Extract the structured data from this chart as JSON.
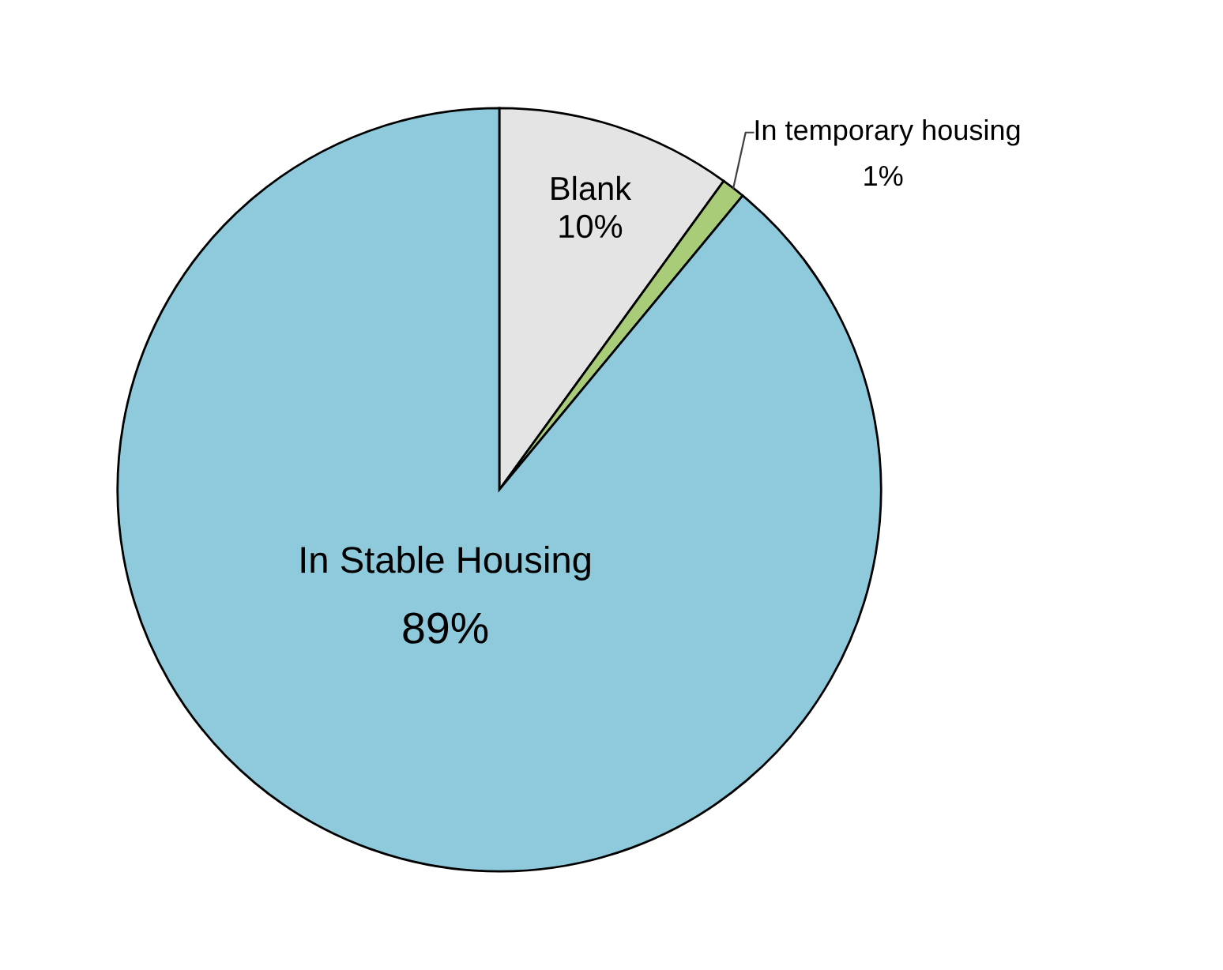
{
  "chart_data": {
    "type": "pie",
    "categories": [
      "Blank",
      "In temporary housing",
      "In Stable Housing"
    ],
    "values": [
      10,
      1,
      89
    ],
    "colors": [
      "#e4e4e4",
      "#a9cc78",
      "#8ecadb"
    ],
    "value_labels": [
      "10%",
      "1%",
      "89%"
    ],
    "legend": false
  }
}
